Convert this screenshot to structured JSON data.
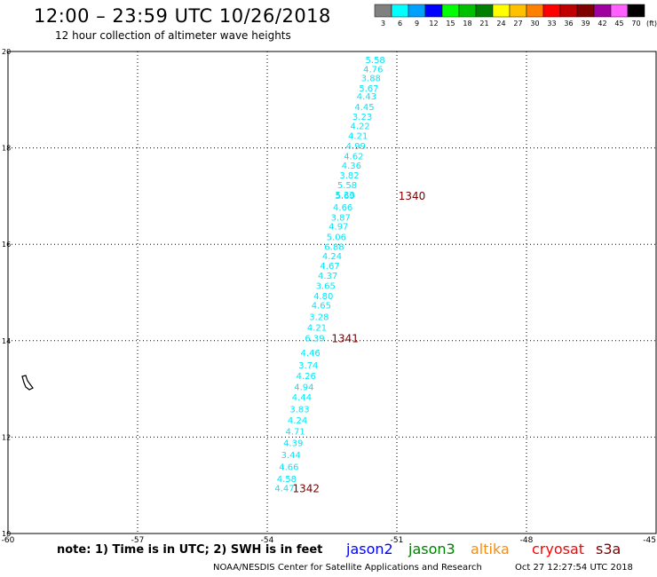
{
  "chart_data": {
    "type": "scatter",
    "title": "12:00 – 23:59 UTC 10/26/2018",
    "subtitle": "12 hour collection of altimeter wave heights",
    "xlim": [
      -60,
      -45
    ],
    "ylim": [
      10,
      20
    ],
    "x_ticks": [
      "-60",
      "-57",
      "-54",
      "-51",
      "-48",
      "-45"
    ],
    "y_ticks": [
      "10",
      "12",
      "14",
      "16",
      "18",
      "20"
    ],
    "grid": true,
    "series": [
      {
        "name": "jason2",
        "color": "#00e8f8",
        "points": [
          {
            "x": -51.5,
            "y": 19.82,
            "label": "5.58"
          },
          {
            "x": -51.55,
            "y": 19.62,
            "label": "4.76"
          },
          {
            "x": -51.6,
            "y": 19.44,
            "label": "3.88"
          },
          {
            "x": -51.65,
            "y": 19.23,
            "label": "5.67"
          },
          {
            "x": -51.7,
            "y": 19.06,
            "label": "4.43"
          },
          {
            "x": -51.75,
            "y": 18.84,
            "label": "4.45"
          },
          {
            "x": -51.8,
            "y": 18.64,
            "label": "3.23"
          },
          {
            "x": -51.85,
            "y": 18.44,
            "label": "4.22"
          },
          {
            "x": -51.9,
            "y": 18.24,
            "label": "4.21"
          },
          {
            "x": -51.95,
            "y": 18.03,
            "label": "4.99"
          },
          {
            "x": -52.0,
            "y": 17.82,
            "label": "4.62"
          },
          {
            "x": -52.05,
            "y": 17.62,
            "label": "4.36"
          },
          {
            "x": -52.1,
            "y": 17.42,
            "label": "3.82"
          },
          {
            "x": -52.15,
            "y": 17.22,
            "label": "5.58"
          },
          {
            "x": -52.2,
            "y": 17.0,
            "label": "5.69"
          },
          {
            "x": -52.2,
            "y": 17.02,
            "label": "5.33"
          },
          {
            "x": -52.25,
            "y": 16.76,
            "label": "4.66"
          },
          {
            "x": -52.3,
            "y": 16.55,
            "label": "3.87"
          },
          {
            "x": -52.35,
            "y": 16.36,
            "label": "4.97"
          },
          {
            "x": -52.4,
            "y": 16.14,
            "label": "5.06"
          },
          {
            "x": -52.45,
            "y": 15.94,
            "label": "6.88"
          },
          {
            "x": -52.5,
            "y": 15.75,
            "label": "4.24"
          },
          {
            "x": -52.55,
            "y": 15.54,
            "label": "4.67"
          },
          {
            "x": -52.6,
            "y": 15.34,
            "label": "4.37"
          },
          {
            "x": -52.65,
            "y": 15.13,
            "label": "3.65"
          },
          {
            "x": -52.7,
            "y": 14.92,
            "label": "4.80"
          },
          {
            "x": -52.75,
            "y": 14.72,
            "label": "4.65"
          },
          {
            "x": -52.8,
            "y": 14.48,
            "label": "3.28"
          },
          {
            "x": -52.85,
            "y": 14.26,
            "label": "4.21"
          },
          {
            "x": -52.9,
            "y": 14.04,
            "label": "6.39"
          },
          {
            "x": -53.0,
            "y": 13.74,
            "label": "4.46"
          },
          {
            "x": -53.05,
            "y": 13.48,
            "label": "3.74"
          },
          {
            "x": -53.1,
            "y": 13.26,
            "label": "4.26"
          },
          {
            "x": -53.15,
            "y": 13.03,
            "label": "4.94"
          },
          {
            "x": -53.2,
            "y": 12.82,
            "label": "4.44"
          },
          {
            "x": -53.25,
            "y": 12.57,
            "label": "3.83"
          },
          {
            "x": -53.3,
            "y": 12.34,
            "label": "4.24"
          },
          {
            "x": -53.35,
            "y": 12.11,
            "label": "4.71"
          },
          {
            "x": -53.4,
            "y": 11.87,
            "label": "4.39"
          },
          {
            "x": -53.45,
            "y": 11.62,
            "label": "3.44"
          },
          {
            "x": -53.5,
            "y": 11.37,
            "label": "4.66"
          },
          {
            "x": -53.55,
            "y": 11.12,
            "label": "4.58"
          },
          {
            "x": -53.6,
            "y": 10.93,
            "label": "4.47"
          }
        ]
      }
    ],
    "pass_labels": [
      {
        "x": -50.65,
        "y": 17.0,
        "label": "1340",
        "color": "#7a0000"
      },
      {
        "x": -52.2,
        "y": 14.04,
        "label": "1341",
        "color": "#7a0000"
      },
      {
        "x": -53.1,
        "y": 10.93,
        "label": "1342",
        "color": "#7a0000"
      }
    ],
    "legend": {
      "placement": "top-right",
      "unit": "(ft)",
      "bins": [
        {
          "label": "3",
          "color": "#808080"
        },
        {
          "label": "6",
          "color": "#00ffff"
        },
        {
          "label": "9",
          "color": "#00a0ff"
        },
        {
          "label": "12",
          "color": "#0000ff"
        },
        {
          "label": "15",
          "color": "#00ff00"
        },
        {
          "label": "18",
          "color": "#00c000"
        },
        {
          "label": "21",
          "color": "#008000"
        },
        {
          "label": "24",
          "color": "#ffff00"
        },
        {
          "label": "27",
          "color": "#ffc000"
        },
        {
          "label": "30",
          "color": "#ff8000"
        },
        {
          "label": "33",
          "color": "#ff0000"
        },
        {
          "label": "36",
          "color": "#c00000"
        },
        {
          "label": "39",
          "color": "#800000"
        },
        {
          "label": "42",
          "color": "#a000a0"
        },
        {
          "label": "45",
          "color": "#ff60ff"
        },
        {
          "label": "70",
          "color": "#000000"
        }
      ]
    },
    "satellites": [
      {
        "name": "jason2",
        "color": "#0000ff"
      },
      {
        "name": "jason3",
        "color": "#008000"
      },
      {
        "name": "altika",
        "color": "#ff8c00"
      },
      {
        "name": "cryosat",
        "color": "#ff0000"
      },
      {
        "name": "s3a",
        "color": "#800000"
      }
    ]
  },
  "note": "note: 1) Time is in UTC; 2) SWH is in feet",
  "credit": "NOAA/NESDIS Center for Satellite Applications and Research",
  "timestamp": "Oct 27 12:27:54 UTC 2018"
}
